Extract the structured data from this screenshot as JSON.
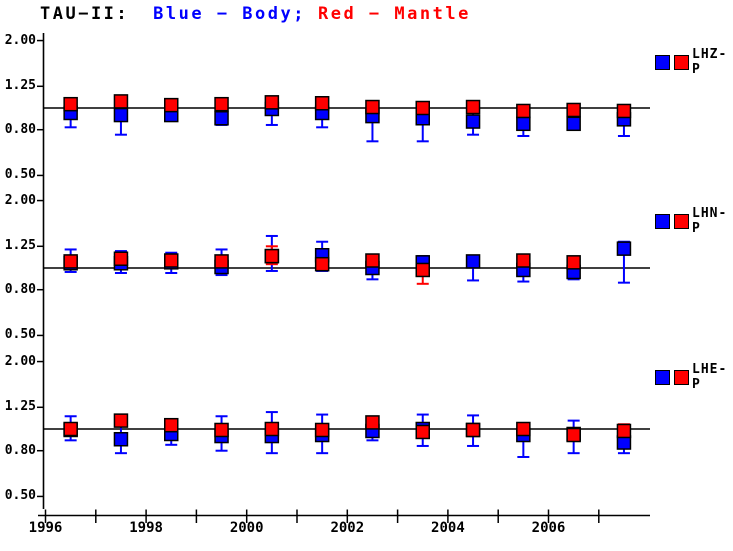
{
  "title": {
    "prefix": "TAU−II:",
    "blue_segment": "Blue − Body;",
    "red_segment": "Red − Mantle"
  },
  "colors": {
    "blue": "#0000FF",
    "red": "#FF0000",
    "axis": "#000000",
    "background": "#FFFFFF"
  },
  "x_axis": {
    "ticks": [
      1996,
      1997,
      1998,
      1999,
      2000,
      2001,
      2002,
      2003,
      2004,
      2005,
      2006,
      2007
    ],
    "labels": [
      "1996",
      "",
      "1998",
      "",
      "2000",
      "",
      "2002",
      "",
      "2004",
      "",
      "2006",
      ""
    ]
  },
  "chart_data": [
    {
      "type": "scatter",
      "label": "LHZ-P",
      "y_scale": "log",
      "y_ticks": [
        "2.00",
        "1.25",
        "0.80",
        "0.50"
      ],
      "ylim": [
        0.45,
        2.2
      ],
      "reference_line": 1.0,
      "x": [
        1996.5,
        1997.5,
        1998.5,
        1999.5,
        2000.5,
        2001.5,
        2002.5,
        2003.5,
        2004.5,
        2005.5,
        2006.5,
        2007.5
      ],
      "series": [
        {
          "name": "Body",
          "color": "blue",
          "values": [
            0.95,
            0.93,
            0.93,
            0.9,
            0.99,
            0.95,
            0.92,
            0.9,
            0.87,
            0.85,
            0.85,
            0.89
          ],
          "err_lo": [
            0.82,
            0.76,
            0.88,
            0.84,
            0.84,
            0.82,
            0.71,
            0.71,
            0.76,
            0.75,
            0.8,
            0.75
          ],
          "err_hi": [
            1.02,
            1.05,
            0.98,
            0.95,
            1.06,
            1.04,
            1.02,
            1.0,
            0.95,
            0.93,
            0.9,
            0.97
          ]
        },
        {
          "name": "Mantle",
          "color": "red",
          "values": [
            1.04,
            1.07,
            1.03,
            1.04,
            1.06,
            1.05,
            1.01,
            1.0,
            1.01,
            0.97,
            0.98,
            0.97
          ],
          "err_lo": [
            1.0,
            1.02,
            0.99,
            1.0,
            1.02,
            1.0,
            0.95,
            0.94,
            0.97,
            0.92,
            0.95,
            0.92
          ],
          "err_hi": [
            1.08,
            1.12,
            1.08,
            1.09,
            1.1,
            1.1,
            1.06,
            1.05,
            1.05,
            1.02,
            1.02,
            1.03
          ]
        }
      ]
    },
    {
      "type": "scatter",
      "label": "LHN-P",
      "y_scale": "log",
      "y_ticks": [
        "2.00",
        "1.25",
        "0.80",
        "0.50"
      ],
      "ylim": [
        0.45,
        2.2
      ],
      "reference_line": 1.0,
      "x": [
        1996.5,
        1997.5,
        1998.5,
        1999.5,
        2000.5,
        2001.5,
        2002.5,
        2003.5,
        2004.5,
        2005.5,
        2006.5,
        2007.5
      ],
      "series": [
        {
          "name": "Body",
          "color": "blue",
          "values": [
            1.05,
            1.05,
            1.06,
            1.01,
            1.13,
            1.14,
            1.0,
            1.06,
            1.07,
            0.98,
            0.96,
            1.22
          ],
          "err_lo": [
            0.96,
            0.95,
            0.95,
            0.93,
            0.97,
            0.97,
            0.89,
            0.98,
            0.88,
            0.87,
            0.89,
            0.86
          ],
          "err_hi": [
            1.21,
            1.19,
            1.17,
            1.21,
            1.39,
            1.31,
            1.1,
            1.13,
            1.12,
            1.08,
            1.03,
            1.31
          ]
        },
        {
          "name": "Mantle",
          "color": "red",
          "values": [
            1.07,
            1.1,
            1.08,
            1.07,
            1.13,
            1.04,
            1.08,
            0.98,
            null,
            1.08,
            1.06,
            null
          ],
          "err_lo": [
            1.0,
            1.04,
            1.02,
            1.01,
            1.04,
            0.99,
            1.02,
            0.85,
            null,
            1.03,
            0.91,
            null
          ],
          "err_hi": [
            1.12,
            1.15,
            1.13,
            1.12,
            1.25,
            1.1,
            1.14,
            1.08,
            null,
            1.13,
            1.12,
            null
          ]
        }
      ]
    },
    {
      "type": "scatter",
      "label": "LHE-P",
      "y_scale": "log",
      "y_ticks": [
        "2.00",
        "1.25",
        "0.80",
        "0.50"
      ],
      "ylim": [
        0.45,
        2.2
      ],
      "reference_line": 1.0,
      "x": [
        1996.5,
        1997.5,
        1998.5,
        1999.5,
        2000.5,
        2001.5,
        2002.5,
        2003.5,
        2004.5,
        2005.5,
        2006.5,
        2007.5
      ],
      "series": [
        {
          "name": "Body",
          "color": "blue",
          "values": [
            0.99,
            0.9,
            0.95,
            0.93,
            0.93,
            0.94,
            0.98,
            1.0,
            0.99,
            0.94,
            0.95,
            0.87
          ],
          "err_lo": [
            0.89,
            0.78,
            0.85,
            0.8,
            0.78,
            0.78,
            0.89,
            0.84,
            0.84,
            0.75,
            0.78,
            0.78
          ],
          "err_hi": [
            1.14,
            1.12,
            1.09,
            1.14,
            1.19,
            1.16,
            1.09,
            1.16,
            1.15,
            1.05,
            1.09,
            0.97
          ]
        },
        {
          "name": "Mantle",
          "color": "red",
          "values": [
            1.0,
            1.09,
            1.04,
            0.99,
            1.0,
            0.99,
            1.07,
            0.97,
            0.99,
            1.0,
            0.94,
            0.98
          ],
          "err_lo": [
            0.94,
            1.03,
            0.98,
            0.95,
            0.95,
            0.94,
            1.0,
            0.92,
            0.94,
            0.95,
            0.9,
            0.93
          ],
          "err_hi": [
            1.06,
            1.14,
            1.09,
            1.04,
            1.05,
            1.04,
            1.12,
            1.03,
            1.05,
            1.06,
            0.99,
            1.05
          ]
        }
      ]
    }
  ]
}
